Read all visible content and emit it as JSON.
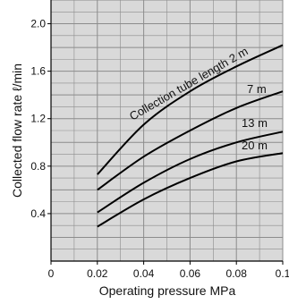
{
  "chart_data": {
    "type": "line",
    "title": "",
    "xlabel": "Operating pressure MPa",
    "ylabel": "Collected flow rate ℓ/min",
    "xlim": [
      0,
      0.1
    ],
    "ylim": [
      0,
      2.2
    ],
    "x_ticks": [
      "0",
      "0.02",
      "0.04",
      "0.06",
      "0.08",
      "0.1"
    ],
    "y_ticks": [
      "0.4",
      "0.8",
      "1.2",
      "1.6",
      "2.0"
    ],
    "grid": true,
    "colors": {
      "background": "#d9d9d9",
      "grid": "#8c8c8c",
      "line": "#000000"
    },
    "x": [
      0.02,
      0.04,
      0.06,
      0.08,
      0.1
    ],
    "series": [
      {
        "name": "Collection tube length 2 m",
        "values": [
          0.73,
          1.15,
          1.43,
          1.64,
          1.82
        ]
      },
      {
        "name": "7 m",
        "values": [
          0.6,
          0.88,
          1.1,
          1.29,
          1.43
        ]
      },
      {
        "name": "13 m",
        "values": [
          0.41,
          0.66,
          0.86,
          1.0,
          1.09
        ]
      },
      {
        "name": "20 m",
        "values": [
          0.29,
          0.52,
          0.7,
          0.84,
          0.91
        ]
      }
    ]
  }
}
